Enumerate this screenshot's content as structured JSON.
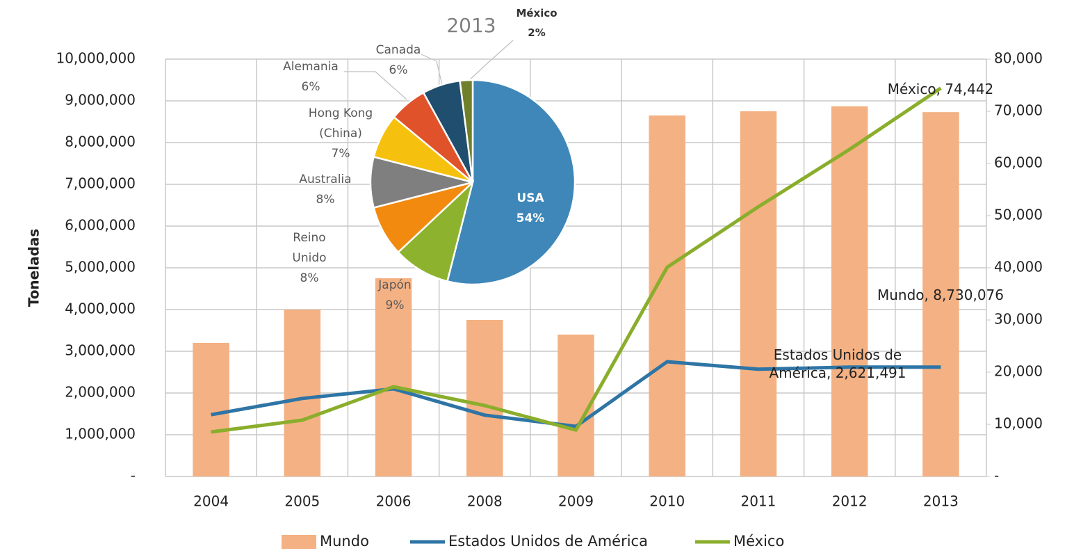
{
  "chart_data": [
    {
      "type": "bar",
      "ylabel": "Toneladas",
      "categories": [
        "2004",
        "2005",
        "2006",
        "2008",
        "2009",
        "2010",
        "2011",
        "2012",
        "2013"
      ],
      "series": [
        {
          "name": "Mundo",
          "type": "bar",
          "color": "#f4b183",
          "values": [
            3200000,
            4000000,
            4750000,
            3750000,
            3400000,
            8650000,
            8750000,
            8870000,
            8730076
          ],
          "value_labels": [
            null,
            null,
            null,
            null,
            null,
            null,
            null,
            null,
            "Mundo,  8,730,076"
          ]
        },
        {
          "name": "Estados Unidos de América",
          "type": "line",
          "color": "#2e75a6",
          "values": [
            1480000,
            1870000,
            2100000,
            1470000,
            1200000,
            2750000,
            2570000,
            2620000,
            2621491
          ],
          "value_labels": [
            null,
            null,
            null,
            null,
            null,
            null,
            null,
            null,
            "Estados Unidos de América,  2,621,491"
          ]
        },
        {
          "name": "México",
          "type": "line",
          "axis": "y2",
          "color": "#8aae2c",
          "values": [
            8530,
            10800,
            17200,
            13600,
            8900,
            40100,
            51700,
            62700,
            74442
          ],
          "value_labels": [
            null,
            null,
            null,
            null,
            null,
            null,
            null,
            null,
            "México,  74,442"
          ]
        }
      ],
      "ylim": [
        0,
        10000000
      ],
      "yticks": [
        {
          "value": 0,
          "label": "-"
        },
        {
          "value": 1000000,
          "label": "1,000,000"
        },
        {
          "value": 2000000,
          "label": "2,000,000"
        },
        {
          "value": 3000000,
          "label": "3,000,000"
        },
        {
          "value": 4000000,
          "label": "4,000,000"
        },
        {
          "value": 5000000,
          "label": "5,000,000"
        },
        {
          "value": 6000000,
          "label": "6,000,000"
        },
        {
          "value": 7000000,
          "label": "7,000,000"
        },
        {
          "value": 8000000,
          "label": "8,000,000"
        },
        {
          "value": 9000000,
          "label": "9,000,000"
        },
        {
          "value": 10000000,
          "label": "10,000,000"
        }
      ],
      "y2lim": [
        0,
        80000
      ],
      "y2ticks": [
        {
          "value": 0,
          "label": "-"
        },
        {
          "value": 10000,
          "label": "10,000"
        },
        {
          "value": 20000,
          "label": "20,000"
        },
        {
          "value": 30000,
          "label": "30,000"
        },
        {
          "value": 40000,
          "label": "40,000"
        },
        {
          "value": 50000,
          "label": "50,000"
        },
        {
          "value": 60000,
          "label": "60,000"
        },
        {
          "value": 70000,
          "label": "70,000"
        },
        {
          "value": 80000,
          "label": "80,000"
        }
      ],
      "grid": true,
      "legend": "bottom"
    },
    {
      "type": "pie",
      "title": "2013",
      "categories": [
        "USA",
        "Japón",
        "Reino Unido",
        "Australia",
        "Hong Kong (China)",
        "Alemania",
        "Canada",
        "México"
      ],
      "values": [
        54,
        9,
        8,
        8,
        7,
        6,
        6,
        2
      ],
      "value_labels": [
        "54%",
        "9%",
        "8%",
        "8%",
        "7%",
        "6%",
        "6%",
        "2%"
      ],
      "colors": [
        "#3e87b8",
        "#8db32e",
        "#f28a0f",
        "#7f7f7f",
        "#f6c10e",
        "#e0532a",
        "#1f4e6e",
        "#6f7f2a"
      ]
    }
  ]
}
